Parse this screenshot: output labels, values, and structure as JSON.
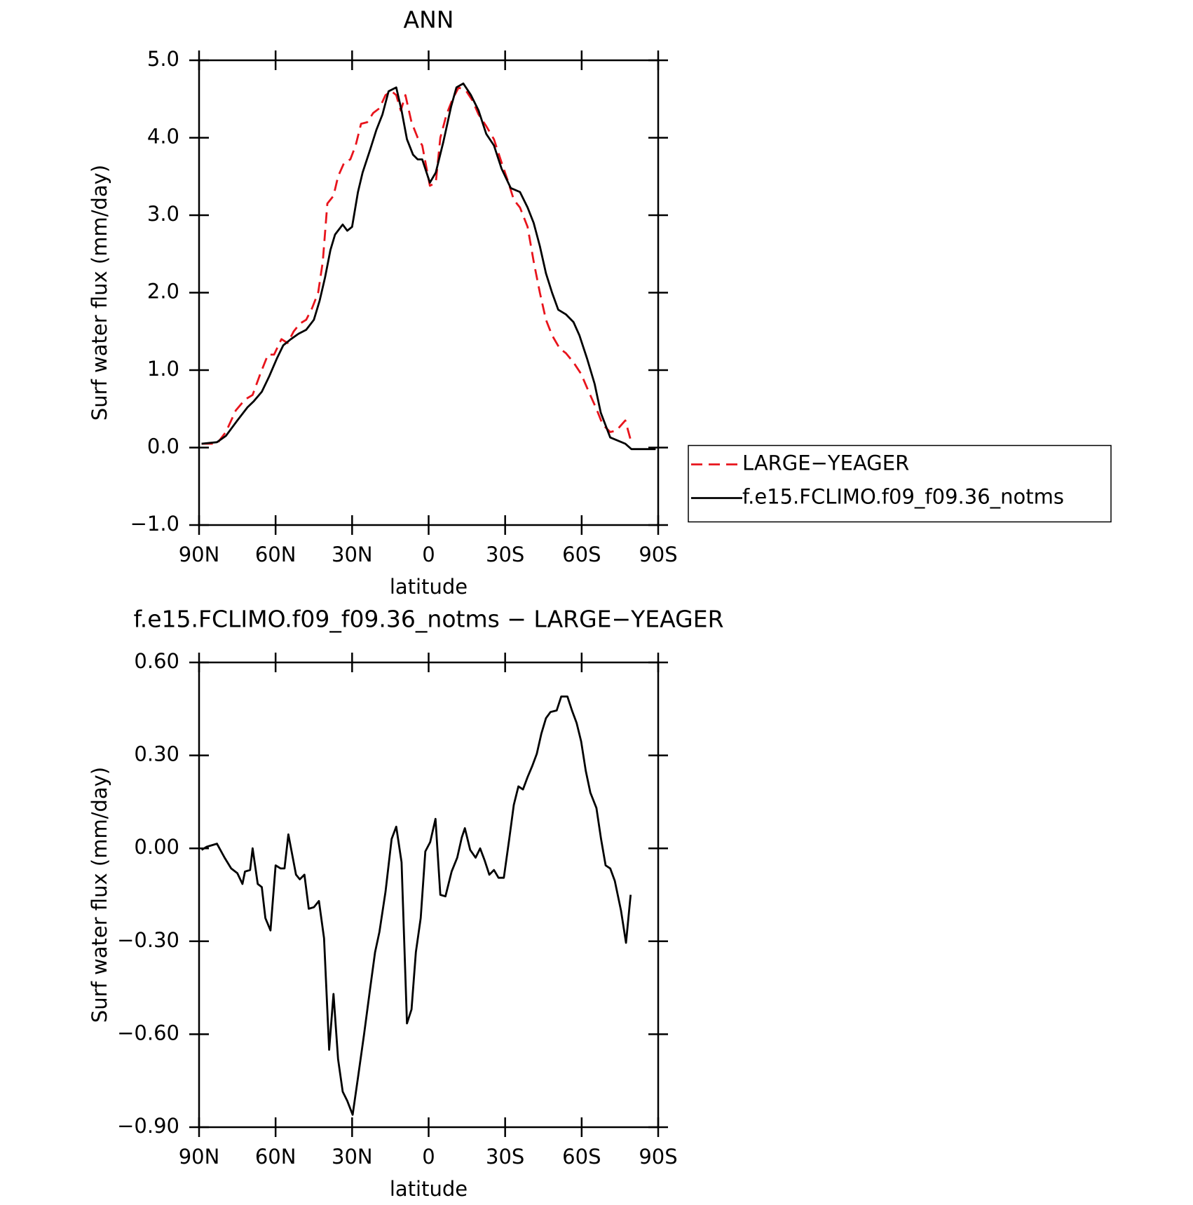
{
  "chart_data": [
    {
      "type": "line",
      "title": "ANN",
      "xlabel": "latitude",
      "ylabel": "Surf water flux (mm/day)",
      "xlim": [
        90,
        -90
      ],
      "xticks": [
        {
          "value": 90,
          "label": "90N"
        },
        {
          "value": 60,
          "label": "60N"
        },
        {
          "value": 30,
          "label": "30N"
        },
        0,
        {
          "value": -30,
          "label": "30S"
        },
        {
          "value": -60,
          "label": "60S"
        },
        {
          "value": -90,
          "label": "90S"
        }
      ],
      "ylim": [
        -1,
        5
      ],
      "yticks": [
        {
          "value": 5,
          "label": "5.0"
        },
        {
          "value": 4,
          "label": "4.0"
        },
        {
          "value": 3,
          "label": "3.0"
        },
        {
          "value": 2,
          "label": "2.0"
        },
        {
          "value": 1,
          "label": "1.0"
        },
        {
          "value": 0,
          "label": "0.0"
        },
        {
          "value": -1,
          "label": "−1.0"
        }
      ],
      "legend": "right",
      "series": [
        {
          "name": "LARGE−YEAGER",
          "color": "#e8141c",
          "linestyle": "dashed",
          "x": [
            89,
            83,
            79.5,
            75.6,
            72,
            69,
            66,
            63,
            60.6,
            57.7,
            55.3,
            52.9,
            50.5,
            48,
            45.7,
            43.3,
            41.5,
            39.7,
            37.3,
            35.5,
            33.1,
            30.7,
            28.6,
            26.5,
            24.1,
            21.7,
            19.3,
            16.9,
            14.5,
            12.7,
            10.9,
            9.1,
            6.7,
            4.3,
            2.5,
            -0.5,
            -2.8,
            -4.6,
            -7,
            -9.4,
            -11.8,
            -14.8,
            -17.2,
            -19.6,
            -22.6,
            -25.6,
            -28.6,
            -31,
            -33.4,
            -35.8,
            -38.8,
            -41.2,
            -43.6,
            -46,
            -48.4,
            -51.4,
            -53.8,
            -56.8,
            -59.8,
            -62.8,
            -65.8,
            -68.2,
            -71.2,
            -73.6,
            -77.1,
            -79.2
          ],
          "values": [
            0.05,
            0.05,
            0.2,
            0.48,
            0.62,
            0.68,
            0.95,
            1.2,
            1.2,
            1.4,
            1.35,
            1.5,
            1.6,
            1.65,
            1.8,
            2.0,
            2.4,
            3.15,
            3.25,
            3.5,
            3.68,
            3.72,
            3.9,
            4.18,
            4.2,
            4.32,
            4.38,
            4.55,
            4.6,
            4.55,
            4.35,
            4.55,
            4.2,
            4.0,
            3.9,
            3.38,
            3.42,
            4.0,
            4.3,
            4.5,
            4.65,
            4.6,
            4.48,
            4.3,
            4.15,
            3.98,
            3.68,
            3.45,
            3.2,
            3.1,
            2.85,
            2.4,
            2.0,
            1.65,
            1.45,
            1.28,
            1.22,
            1.1,
            0.95,
            0.72,
            0.5,
            0.3,
            0.2,
            0.22,
            0.35,
            0.1
          ]
        },
        {
          "name": "f.e15.FCLIMO.f09_f09.36_notms",
          "color": "#000000",
          "linestyle": "solid",
          "x": [
            89,
            83,
            79.5,
            75,
            71,
            68.5,
            65.4,
            62.5,
            59.5,
            57,
            54,
            51,
            48,
            45,
            42.7,
            40.6,
            38.5,
            36.7,
            33.7,
            31.9,
            30,
            27.7,
            25.9,
            22.9,
            20.5,
            18.1,
            15.7,
            12.7,
            10.6,
            8.5,
            6.1,
            4.3,
            2.5,
            -0.5,
            -2.8,
            -5.8,
            -8.8,
            -10.9,
            -13.6,
            -16.6,
            -19.6,
            -22.6,
            -25.6,
            -28.6,
            -32.2,
            -35.8,
            -38.8,
            -41.2,
            -43.6,
            -46,
            -48.4,
            -50.8,
            -53.8,
            -56.8,
            -59.1,
            -62.1,
            -65.1,
            -67.5,
            -71.2,
            -77.1,
            -79.5,
            -89
          ],
          "values": [
            0.05,
            0.07,
            0.15,
            0.35,
            0.52,
            0.6,
            0.72,
            0.92,
            1.15,
            1.32,
            1.4,
            1.47,
            1.52,
            1.65,
            1.9,
            2.2,
            2.55,
            2.75,
            2.88,
            2.8,
            2.85,
            3.3,
            3.55,
            3.85,
            4.1,
            4.3,
            4.6,
            4.65,
            4.35,
            3.98,
            3.78,
            3.72,
            3.72,
            3.42,
            3.55,
            3.95,
            4.4,
            4.65,
            4.7,
            4.55,
            4.35,
            4.05,
            3.9,
            3.6,
            3.35,
            3.3,
            3.1,
            2.9,
            2.6,
            2.25,
            2.0,
            1.78,
            1.72,
            1.62,
            1.45,
            1.15,
            0.82,
            0.45,
            0.13,
            0.05,
            -0.02,
            -0.02
          ]
        }
      ]
    },
    {
      "type": "line",
      "title": "f.e15.FCLIMO.f09_f09.36_notms − LARGE−YEAGER",
      "xlabel": "latitude",
      "ylabel": "Surf water flux (mm/day)",
      "xlim": [
        90,
        -90
      ],
      "xticks": [
        {
          "value": 90,
          "label": "90N"
        },
        {
          "value": 60,
          "label": "60N"
        },
        {
          "value": 30,
          "label": "30N"
        },
        0,
        {
          "value": -30,
          "label": "30S"
        },
        {
          "value": -60,
          "label": "60S"
        },
        {
          "value": -90,
          "label": "90S"
        }
      ],
      "ylim": [
        -0.9,
        0.6
      ],
      "yticks": [
        {
          "value": 0.6,
          "label": "0.60"
        },
        {
          "value": 0.3,
          "label": "0.30"
        },
        {
          "value": 0,
          "label": "0.00"
        },
        {
          "value": -0.3,
          "label": "−0.30"
        },
        {
          "value": -0.6,
          "label": "−0.60"
        },
        {
          "value": -0.9,
          "label": "−0.90"
        }
      ],
      "color": "#000000",
      "x": [
        89,
        87,
        83,
        80,
        77.4,
        75,
        73,
        72,
        70,
        69,
        67,
        65.4,
        64,
        62,
        60,
        58,
        56.5,
        55,
        52,
        50.5,
        48.7,
        47,
        45,
        43,
        41,
        39,
        37.3,
        35.5,
        33.7,
        31.9,
        29.8,
        27.7,
        25.3,
        22.9,
        21,
        19.3,
        16.9,
        14.5,
        12.7,
        10.6,
        8.5,
        6.7,
        5,
        3.1,
        1.3,
        -0.6,
        -2.7,
        -4.6,
        -6.6,
        -9,
        -11.2,
        -13,
        -14.2,
        -16.3,
        -18.4,
        -20.2,
        -22,
        -23.8,
        -25.6,
        -27.4,
        -29.5,
        -31.6,
        -33.4,
        -35.2,
        -37,
        -38.8,
        -40.6,
        -42.4,
        -44.2,
        -46,
        -47.8,
        -50.2,
        -52,
        -54.4,
        -56.2,
        -58,
        -59.8,
        -61.6,
        -63.4,
        -65.8,
        -67.6,
        -69.4,
        -71.2,
        -73,
        -75.4,
        -77.4,
        -79.2
      ],
      "values": [
        -0.005,
        0.005,
        0.015,
        -0.03,
        -0.065,
        -0.08,
        -0.115,
        -0.075,
        -0.07,
        0.0,
        -0.115,
        -0.125,
        -0.225,
        -0.265,
        -0.055,
        -0.065,
        -0.065,
        0.045,
        -0.085,
        -0.1,
        -0.085,
        -0.195,
        -0.19,
        -0.17,
        -0.29,
        -0.65,
        -0.47,
        -0.68,
        -0.785,
        -0.815,
        -0.86,
        -0.74,
        -0.6,
        -0.45,
        -0.335,
        -0.27,
        -0.14,
        0.03,
        0.07,
        -0.045,
        -0.565,
        -0.52,
        -0.335,
        -0.225,
        -0.01,
        0.02,
        0.095,
        -0.15,
        -0.155,
        -0.075,
        -0.03,
        0.035,
        0.065,
        -0.005,
        -0.03,
        0.0,
        -0.04,
        -0.085,
        -0.07,
        -0.095,
        -0.095,
        0.03,
        0.14,
        0.2,
        0.19,
        0.23,
        0.265,
        0.305,
        0.37,
        0.42,
        0.44,
        0.445,
        0.49,
        0.49,
        0.445,
        0.405,
        0.345,
        0.25,
        0.18,
        0.13,
        0.03,
        -0.055,
        -0.065,
        -0.105,
        -0.2,
        -0.305,
        -0.15
      ]
    }
  ]
}
